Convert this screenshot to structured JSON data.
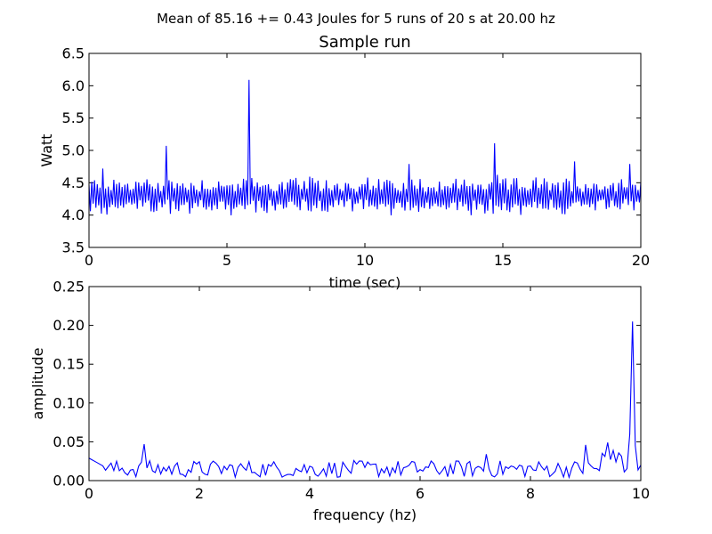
{
  "suptitle": "Mean of 85.16 += 0.43 Joules for 5 runs of 20 s at 20.00 hz",
  "colors": {
    "line": "#0000ff",
    "axes": "#000000",
    "background": "#ffffff"
  },
  "chart_data": [
    {
      "type": "line",
      "title": "Sample run",
      "xlabel": "time (sec)",
      "ylabel": "Watt",
      "xlim": [
        0,
        20
      ],
      "ylim": [
        3.5,
        6.5
      ],
      "xticks": [
        "0",
        "5",
        "10",
        "15",
        "20"
      ],
      "yticks": [
        "3.5",
        "4.0",
        "4.5",
        "5.0",
        "5.5",
        "6.0",
        "6.5"
      ],
      "grid": false,
      "sample_rate_hz": 20,
      "spikes": [
        {
          "x": 0.5,
          "y": 4.72
        },
        {
          "x": 2.8,
          "y": 5.07
        },
        {
          "x": 5.8,
          "y": 6.09
        },
        {
          "x": 14.7,
          "y": 5.11
        },
        {
          "x": 11.6,
          "y": 4.79
        },
        {
          "x": 17.6,
          "y": 4.83
        },
        {
          "x": 19.6,
          "y": 4.79
        }
      ]
    },
    {
      "type": "line",
      "title": "",
      "xlabel": "frequency (hz)",
      "ylabel": "amplitude",
      "xlim": [
        0,
        10
      ],
      "ylim": [
        0,
        0.25
      ],
      "xticks": [
        "0",
        "2",
        "4",
        "6",
        "8",
        "10"
      ],
      "yticks": [
        "0.00",
        "0.05",
        "0.10",
        "0.15",
        "0.20",
        "0.25"
      ],
      "grid": false,
      "peaks": [
        {
          "x": 0.0,
          "y": 0.029
        },
        {
          "x": 1.0,
          "y": 0.047
        },
        {
          "x": 7.2,
          "y": 0.034
        },
        {
          "x": 9.0,
          "y": 0.046
        },
        {
          "x": 9.4,
          "y": 0.049
        },
        {
          "x": 9.85,
          "y": 0.205
        },
        {
          "x": 10.0,
          "y": 0.02
        }
      ]
    }
  ]
}
